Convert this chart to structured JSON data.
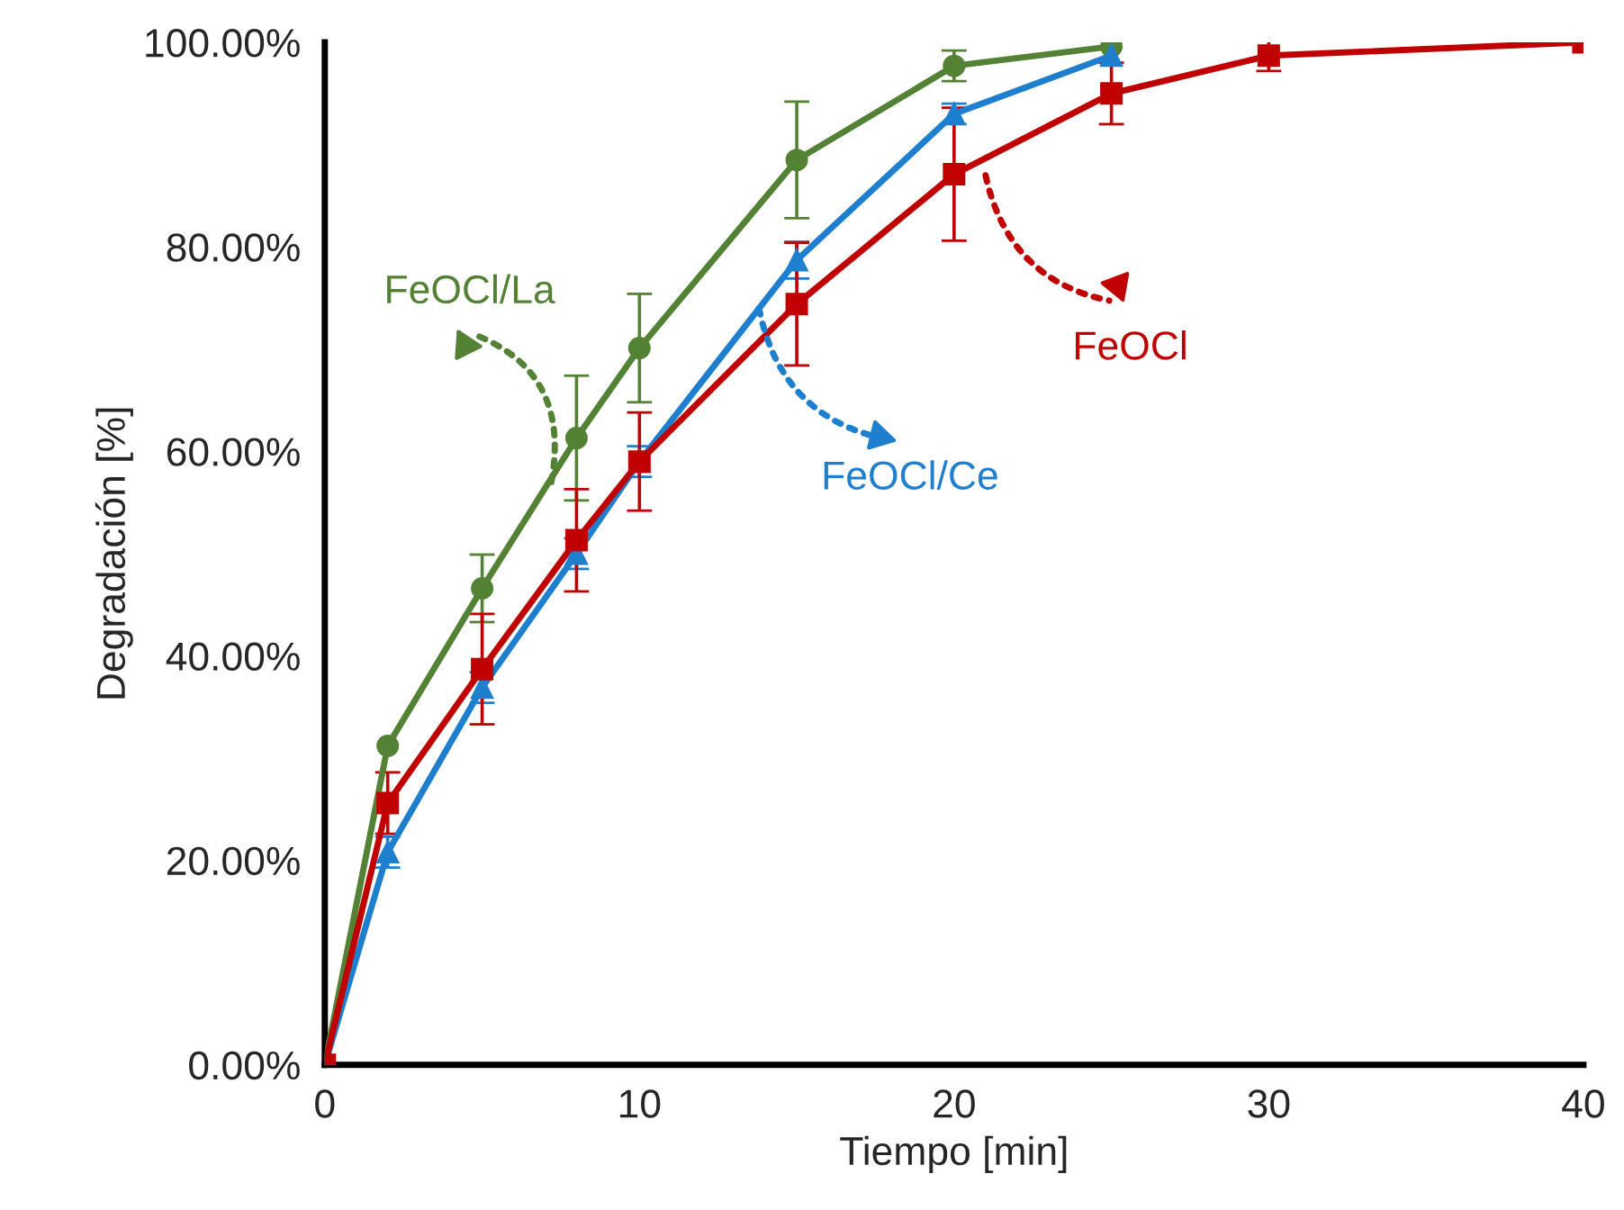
{
  "chart_data": {
    "type": "line",
    "xlabel": "Tiempo [min]",
    "ylabel": "Degradación [%]",
    "xlim": [
      0,
      40
    ],
    "xticks": [
      0,
      10,
      20,
      30,
      40
    ],
    "ylim": [
      0,
      100
    ],
    "yticks": [
      {
        "value": 0,
        "label": "0.00%"
      },
      {
        "value": 20,
        "label": "20.00%"
      },
      {
        "value": 40,
        "label": "40.00%"
      },
      {
        "value": 60,
        "label": "60.00%"
      },
      {
        "value": 80,
        "label": "80.00%"
      },
      {
        "value": 100,
        "label": "100.00%"
      }
    ],
    "grid": false,
    "legend": "right",
    "line_style": "solid",
    "series": [
      {
        "name": "FeOCl/La",
        "color": "#548235",
        "marker": "circle",
        "x": [
          0,
          2,
          5,
          8,
          10,
          15,
          20,
          25
        ],
        "values": [
          0,
          31.2,
          46.6,
          61.3,
          70.1,
          88.5,
          97.7,
          99.6
        ],
        "errors": [
          null,
          null,
          3.3,
          6.1,
          5.3,
          5.7,
          1.5,
          null
        ]
      },
      {
        "name": "FeOCl/Ce",
        "color": "#1f7fcf",
        "marker": "triangle",
        "x": [
          0,
          2,
          5,
          8,
          10,
          15,
          20,
          25
        ],
        "values": [
          0,
          20.8,
          36.9,
          50.0,
          59.0,
          78.7,
          93.0,
          98.7
        ],
        "errors": [
          null,
          1.5,
          1.5,
          1.5,
          1.5,
          1.8,
          1.0,
          null
        ]
      },
      {
        "name": "FeOCl",
        "color": "#c00000",
        "marker": "square",
        "x": [
          0,
          2,
          5,
          8,
          10,
          15,
          20,
          25,
          30,
          40
        ],
        "values": [
          0,
          25.6,
          38.7,
          51.3,
          59.0,
          74.4,
          87.1,
          95.0,
          98.7,
          100.0
        ],
        "errors": [
          null,
          3.0,
          5.4,
          5.0,
          4.8,
          6.0,
          6.5,
          3.0,
          1.5,
          null
        ]
      }
    ]
  }
}
